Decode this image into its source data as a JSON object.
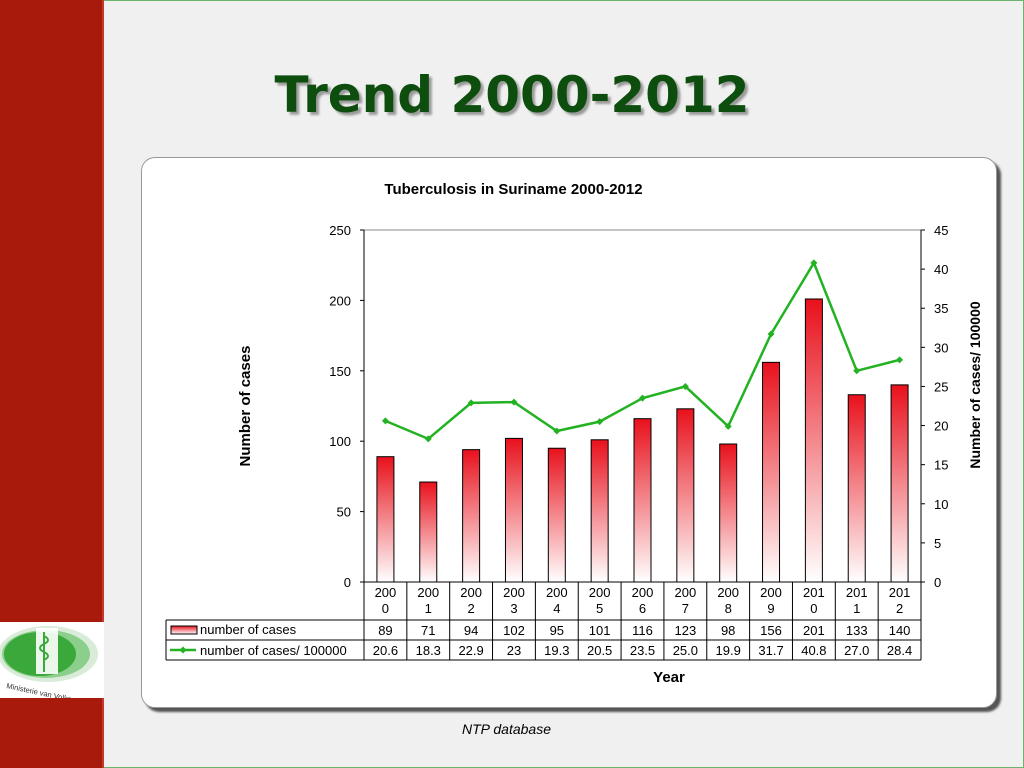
{
  "slide": {
    "title": "Trend 2000-2012",
    "source": "NTP database",
    "logo_text": "Ministerie van Volksgezondheid"
  },
  "colors": {
    "sidebar": "#a81b0c",
    "title": "#0d4d0d",
    "bar_top": "#e8111c",
    "bar_bottom": "#ffffff",
    "line": "#22b222"
  },
  "chart_data": {
    "type": "bar+line",
    "title": "Tuberculosis in Suriname 2000-2012",
    "xlabel": "Year",
    "ylabel_left": "Number of cases",
    "ylabel_right": "Number of cases/ 100000",
    "categories": [
      "2000",
      "2001",
      "2002",
      "2003",
      "2004",
      "2005",
      "2006",
      "2007",
      "2008",
      "2009",
      "2010",
      "2011",
      "2012"
    ],
    "ylim_left": [
      0,
      250
    ],
    "yticks_left": [
      0,
      50,
      100,
      150,
      200,
      250
    ],
    "ylim_right": [
      0,
      45
    ],
    "yticks_right": [
      0,
      5,
      10,
      15,
      20,
      25,
      30,
      35,
      40,
      45
    ],
    "grid": false,
    "legend": "data-table",
    "series": [
      {
        "name": "number of cases",
        "type": "bar",
        "axis": "left",
        "values": [
          89,
          71,
          94,
          102,
          95,
          101,
          116,
          123,
          98,
          156,
          201,
          133,
          140
        ],
        "labels": [
          "89",
          "71",
          "94",
          "102",
          "95",
          "101",
          "116",
          "123",
          "98",
          "156",
          "201",
          "133",
          "140"
        ]
      },
      {
        "name": "number of cases/ 100000",
        "type": "line",
        "axis": "right",
        "values": [
          20.6,
          18.3,
          22.9,
          23,
          19.3,
          20.5,
          23.5,
          25.0,
          19.9,
          31.7,
          40.8,
          27.0,
          28.4
        ],
        "labels": [
          "20.6",
          "18.3",
          "22.9",
          "23",
          "19.3",
          "20.5",
          "23.5",
          "25.0",
          "19.9",
          "31.7",
          "40.8",
          "27.0",
          "28.4"
        ]
      }
    ]
  }
}
